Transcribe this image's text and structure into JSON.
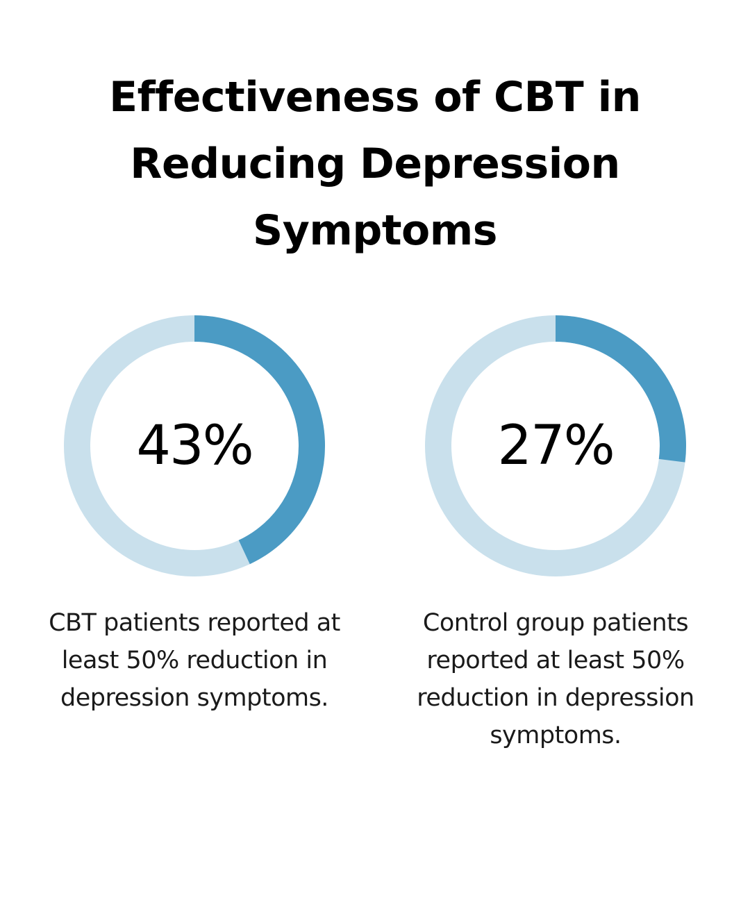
{
  "title": "Effectiveness of CBT in Reducing Depression Symptoms",
  "colors": {
    "track": "#c9e0ec",
    "fill": "#4b9bc4"
  },
  "chart_data": [
    {
      "type": "pie",
      "title": "",
      "value_percent": 43,
      "label": "43%",
      "caption": "CBT patients reported at least 50% reduction in depression symptoms."
    },
    {
      "type": "pie",
      "title": "",
      "value_percent": 27,
      "label": "27%",
      "caption": "Control group patients reported at least 50% reduction in depression symptoms."
    }
  ]
}
